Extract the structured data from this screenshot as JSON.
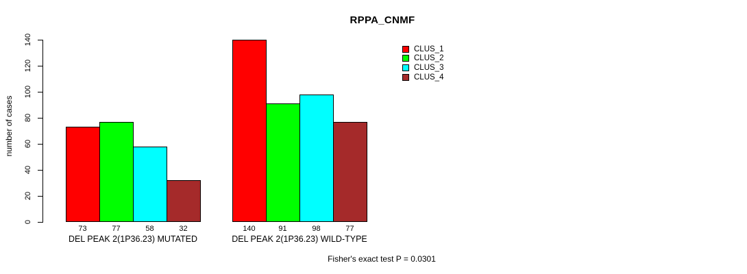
{
  "chart_data": {
    "type": "bar",
    "title": "RPPA_CNMF",
    "ylabel": "number of cases",
    "xlabel": "",
    "categories": [
      "DEL PEAK 2(1P36.23) MUTATED",
      "DEL PEAK 2(1P36.23) WILD-TYPE"
    ],
    "series": [
      {
        "name": "CLUS_1",
        "color": "#FF0000",
        "values": [
          73,
          140
        ]
      },
      {
        "name": "CLUS_2",
        "color": "#00FF00",
        "values": [
          77,
          91
        ]
      },
      {
        "name": "CLUS_3",
        "color": "#00FFFF",
        "values": [
          58,
          98
        ]
      },
      {
        "name": "CLUS_4",
        "color": "#A52A2A",
        "values": [
          32,
          77
        ]
      }
    ],
    "bar_value_labels": [
      [
        73,
        77,
        58,
        32
      ],
      [
        140,
        91,
        98,
        77
      ]
    ],
    "yticks": [
      0,
      20,
      40,
      60,
      80,
      100,
      120,
      140
    ],
    "ylim": [
      0,
      140
    ],
    "grid": false,
    "legend_position": "top-right",
    "legend_entries": [
      "CLUS_1",
      "CLUS_2",
      "CLUS_3",
      "CLUS_4"
    ],
    "annotation": "Fisher's exact test P = 0.0301"
  },
  "colors": {
    "background": "#FFFFFF",
    "axis": "#000000",
    "text": "#000000"
  }
}
